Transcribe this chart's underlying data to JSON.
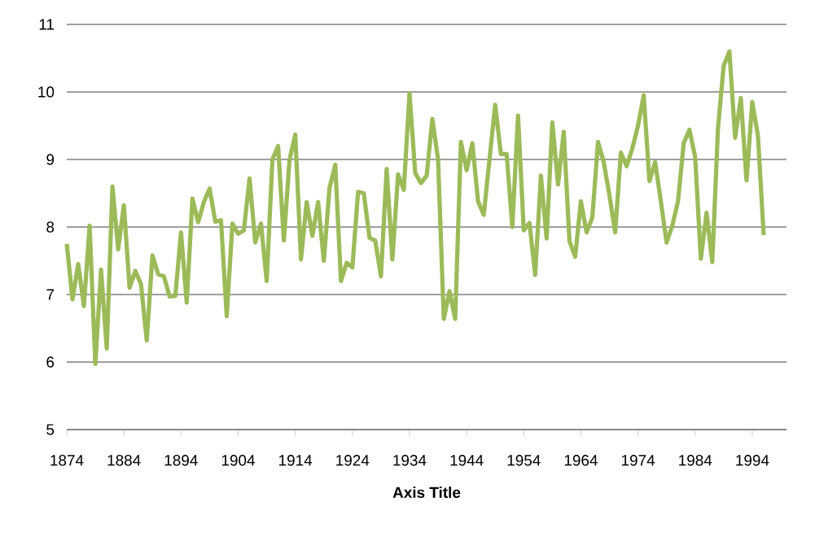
{
  "chart_data": {
    "type": "line",
    "xlabel": "Axis Title",
    "x": [
      1874,
      1875,
      1876,
      1877,
      1878,
      1879,
      1880,
      1881,
      1882,
      1883,
      1884,
      1885,
      1886,
      1887,
      1888,
      1889,
      1890,
      1891,
      1892,
      1893,
      1894,
      1895,
      1896,
      1897,
      1898,
      1899,
      1900,
      1901,
      1902,
      1903,
      1904,
      1905,
      1906,
      1907,
      1908,
      1909,
      1910,
      1911,
      1912,
      1913,
      1914,
      1915,
      1916,
      1917,
      1918,
      1919,
      1920,
      1921,
      1922,
      1923,
      1924,
      1925,
      1926,
      1927,
      1928,
      1929,
      1930,
      1931,
      1932,
      1933,
      1934,
      1935,
      1936,
      1937,
      1938,
      1939,
      1940,
      1941,
      1942,
      1943,
      1944,
      1945,
      1946,
      1947,
      1948,
      1949,
      1950,
      1951,
      1952,
      1953,
      1954,
      1955,
      1956,
      1957,
      1958,
      1959,
      1960,
      1961,
      1962,
      1963,
      1964,
      1965,
      1966,
      1967,
      1968,
      1969,
      1970,
      1971,
      1972,
      1973,
      1974,
      1975,
      1976,
      1977,
      1978,
      1979,
      1980,
      1981,
      1982,
      1983,
      1984,
      1985,
      1986,
      1987,
      1988,
      1989,
      1990,
      1991,
      1992,
      1993,
      1994,
      1995,
      1996
    ],
    "series": [
      {
        "color": "#9bbb59",
        "values": [
          7.75,
          6.93,
          7.45,
          6.83,
          8.02,
          5.97,
          7.37,
          6.2,
          8.6,
          7.67,
          8.32,
          7.1,
          7.35,
          7.15,
          6.32,
          7.58,
          7.3,
          7.27,
          6.97,
          6.98,
          7.92,
          6.88,
          8.42,
          8.07,
          8.37,
          8.57,
          8.08,
          8.1,
          6.68,
          8.05,
          7.9,
          7.95,
          8.72,
          7.77,
          8.05,
          7.2,
          9.0,
          9.2,
          7.8,
          9.0,
          9.37,
          7.52,
          8.37,
          7.87,
          8.37,
          7.5,
          8.58,
          8.92,
          7.2,
          7.47,
          7.4,
          8.52,
          8.5,
          7.84,
          7.8,
          7.27,
          8.86,
          7.52,
          8.78,
          8.55,
          9.98,
          8.8,
          8.65,
          8.76,
          9.6,
          9.0,
          6.64,
          7.05,
          6.64,
          9.26,
          8.84,
          9.24,
          8.38,
          8.18,
          9.0,
          9.81,
          9.08,
          9.08,
          8.0,
          9.65,
          7.95,
          8.06,
          7.29,
          8.76,
          7.83,
          9.55,
          8.63,
          9.41,
          7.79,
          7.56,
          8.38,
          7.92,
          8.14,
          9.26,
          8.96,
          8.47,
          7.92,
          9.1,
          8.9,
          9.16,
          9.5,
          9.95,
          8.68,
          8.96,
          8.38,
          7.77,
          8.02,
          8.38,
          9.24,
          9.44,
          9.04,
          7.53,
          8.21,
          7.48,
          9.46,
          10.39,
          10.6,
          9.32,
          9.91,
          8.69,
          9.85,
          9.35,
          7.88
        ]
      }
    ],
    "xlim": [
      1874,
      2000
    ],
    "ylim": [
      5,
      11
    ],
    "xticks": [
      1874,
      1884,
      1894,
      1904,
      1914,
      1924,
      1934,
      1944,
      1954,
      1964,
      1974,
      1984,
      1994
    ],
    "yticks": [
      5,
      6,
      7,
      8,
      9,
      10,
      11
    ],
    "grid": "y",
    "marker": "none",
    "line_style": "solid"
  }
}
